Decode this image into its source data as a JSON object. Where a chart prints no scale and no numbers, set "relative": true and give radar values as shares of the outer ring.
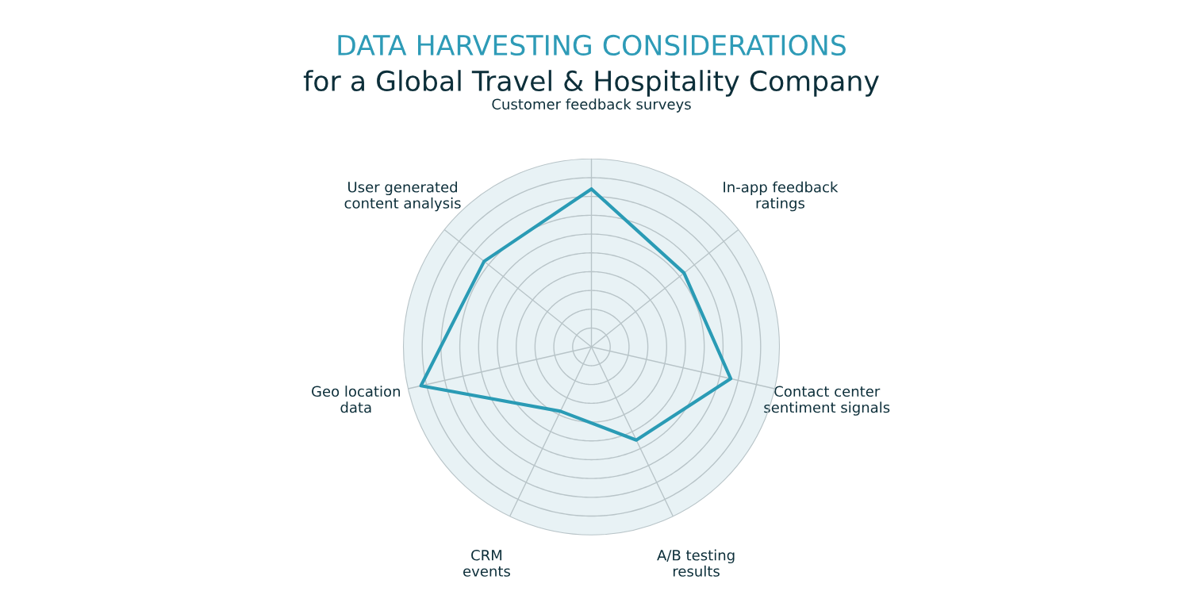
{
  "chart_data": {
    "type": "radar",
    "title": "DATA HARVESTING CONSIDERATIONS",
    "subtitle": "for a Global Travel & Hospitality Company",
    "categories": [
      "Customer feedback surveys",
      "In-app feedback\nratings",
      "Contact center\nsentiment signals",
      "A/B testing\nresults",
      "CRM\nevents",
      "Geo location\ndata",
      "User generated\ncontent analysis"
    ],
    "relative": true,
    "grid": true,
    "marker": "none",
    "line_style": "solid",
    "series": [
      {
        "color": "#2a9bb5",
        "values": [
          0.84,
          0.63,
          0.76,
          0.55,
          0.38,
          0.93,
          0.73
        ]
      }
    ]
  }
}
